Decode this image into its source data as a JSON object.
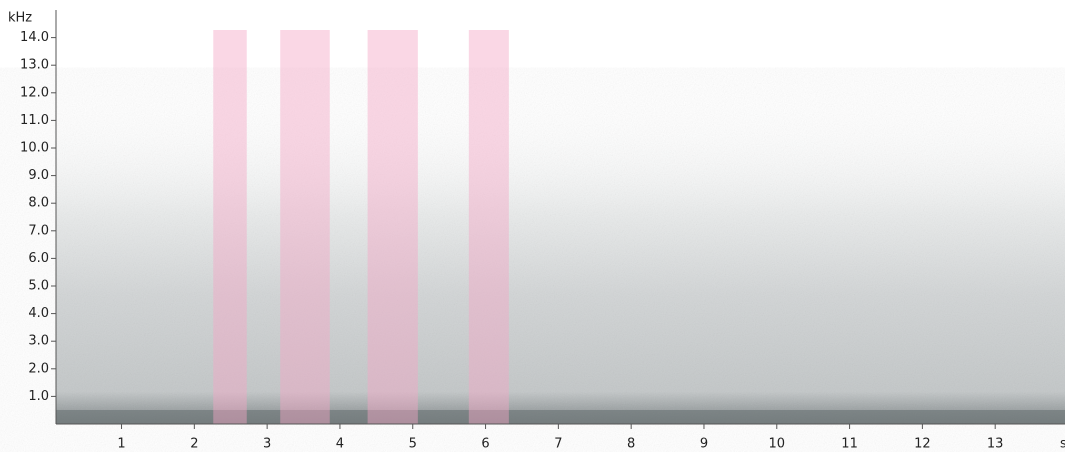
{
  "chart_data": {
    "type": "spectrogram",
    "ylabel": "kHz",
    "xlabel": "s",
    "xlim": [
      0.1,
      14.0
    ],
    "ylim": [
      0,
      15
    ],
    "xticks": [
      1,
      2,
      3,
      4,
      5,
      6,
      7,
      8,
      9,
      10,
      11,
      12,
      13
    ],
    "yticks": [
      {
        "value": 1,
        "label": "1.0"
      },
      {
        "value": 2,
        "label": "2.0"
      },
      {
        "value": 3,
        "label": "3.0"
      },
      {
        "value": 4,
        "label": "4.0"
      },
      {
        "value": 5,
        "label": "5.0"
      },
      {
        "value": 6,
        "label": "6.0"
      },
      {
        "value": 7,
        "label": "7.0"
      },
      {
        "value": 8,
        "label": "8.0"
      },
      {
        "value": 9,
        "label": "9.0"
      },
      {
        "value": 10,
        "label": "10.0"
      },
      {
        "value": 11,
        "label": "11.0"
      },
      {
        "value": 12,
        "label": "12.0"
      },
      {
        "value": 13,
        "label": "13.0"
      },
      {
        "value": 14,
        "label": "14.0"
      }
    ],
    "highlight_color": "#f4a6c6",
    "highlights": [
      {
        "start": 2.26,
        "end": 2.72
      },
      {
        "start": 3.18,
        "end": 3.86
      },
      {
        "start": 4.38,
        "end": 5.07
      },
      {
        "start": 5.77,
        "end": 6.32
      }
    ]
  }
}
